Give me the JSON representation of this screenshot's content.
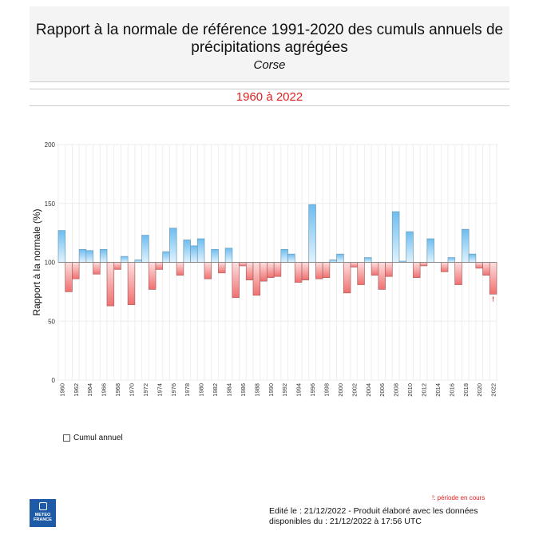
{
  "header": {
    "title": "Rapport à la normale de référence 1991-2020 des cumuls annuels de précipitations agrégées",
    "subtitle": "Corse"
  },
  "period": "1960 à 2022",
  "legend": {
    "label": "Cumul annuel"
  },
  "note": "!: période en cours",
  "footer": {
    "line1": "Edité le : 21/12/2022 - Produit élaboré avec les données",
    "line2": "disponibles du : 21/12/2022 à 17:56 UTC"
  },
  "logo": {
    "text": "METEO FRANCE"
  },
  "chart_data": {
    "type": "bar",
    "ylabel": "Rapport à la normale (%)",
    "ylim": [
      0,
      200
    ],
    "yticks": [
      0,
      50,
      100,
      150,
      200
    ],
    "baseline": 100,
    "grid": "vertical",
    "colors": {
      "above": "#7cc4f0",
      "below": "#f07878"
    },
    "in_progress_marker": "!",
    "x": [
      1960,
      1961,
      1962,
      1963,
      1964,
      1965,
      1966,
      1967,
      1968,
      1969,
      1970,
      1971,
      1972,
      1973,
      1974,
      1975,
      1976,
      1977,
      1978,
      1979,
      1980,
      1981,
      1982,
      1983,
      1984,
      1985,
      1986,
      1987,
      1988,
      1989,
      1990,
      1991,
      1992,
      1993,
      1994,
      1995,
      1996,
      1997,
      1998,
      1999,
      2000,
      2001,
      2002,
      2003,
      2004,
      2005,
      2006,
      2007,
      2008,
      2009,
      2010,
      2011,
      2012,
      2013,
      2014,
      2015,
      2016,
      2017,
      2018,
      2019,
      2020,
      2021,
      2022
    ],
    "values": [
      127,
      75,
      86,
      111,
      110,
      90,
      111,
      63,
      94,
      105,
      64,
      102,
      123,
      77,
      94,
      109,
      129,
      89,
      119,
      114,
      120,
      86,
      111,
      91,
      112,
      70,
      97,
      85,
      72,
      84,
      87,
      88,
      111,
      107,
      83,
      85,
      149,
      86,
      87,
      102,
      107,
      74,
      96,
      81,
      104,
      89,
      77,
      88,
      143,
      101,
      126,
      87,
      97,
      120,
      100,
      92,
      104,
      81,
      128,
      107,
      95,
      89,
      73
    ]
  }
}
